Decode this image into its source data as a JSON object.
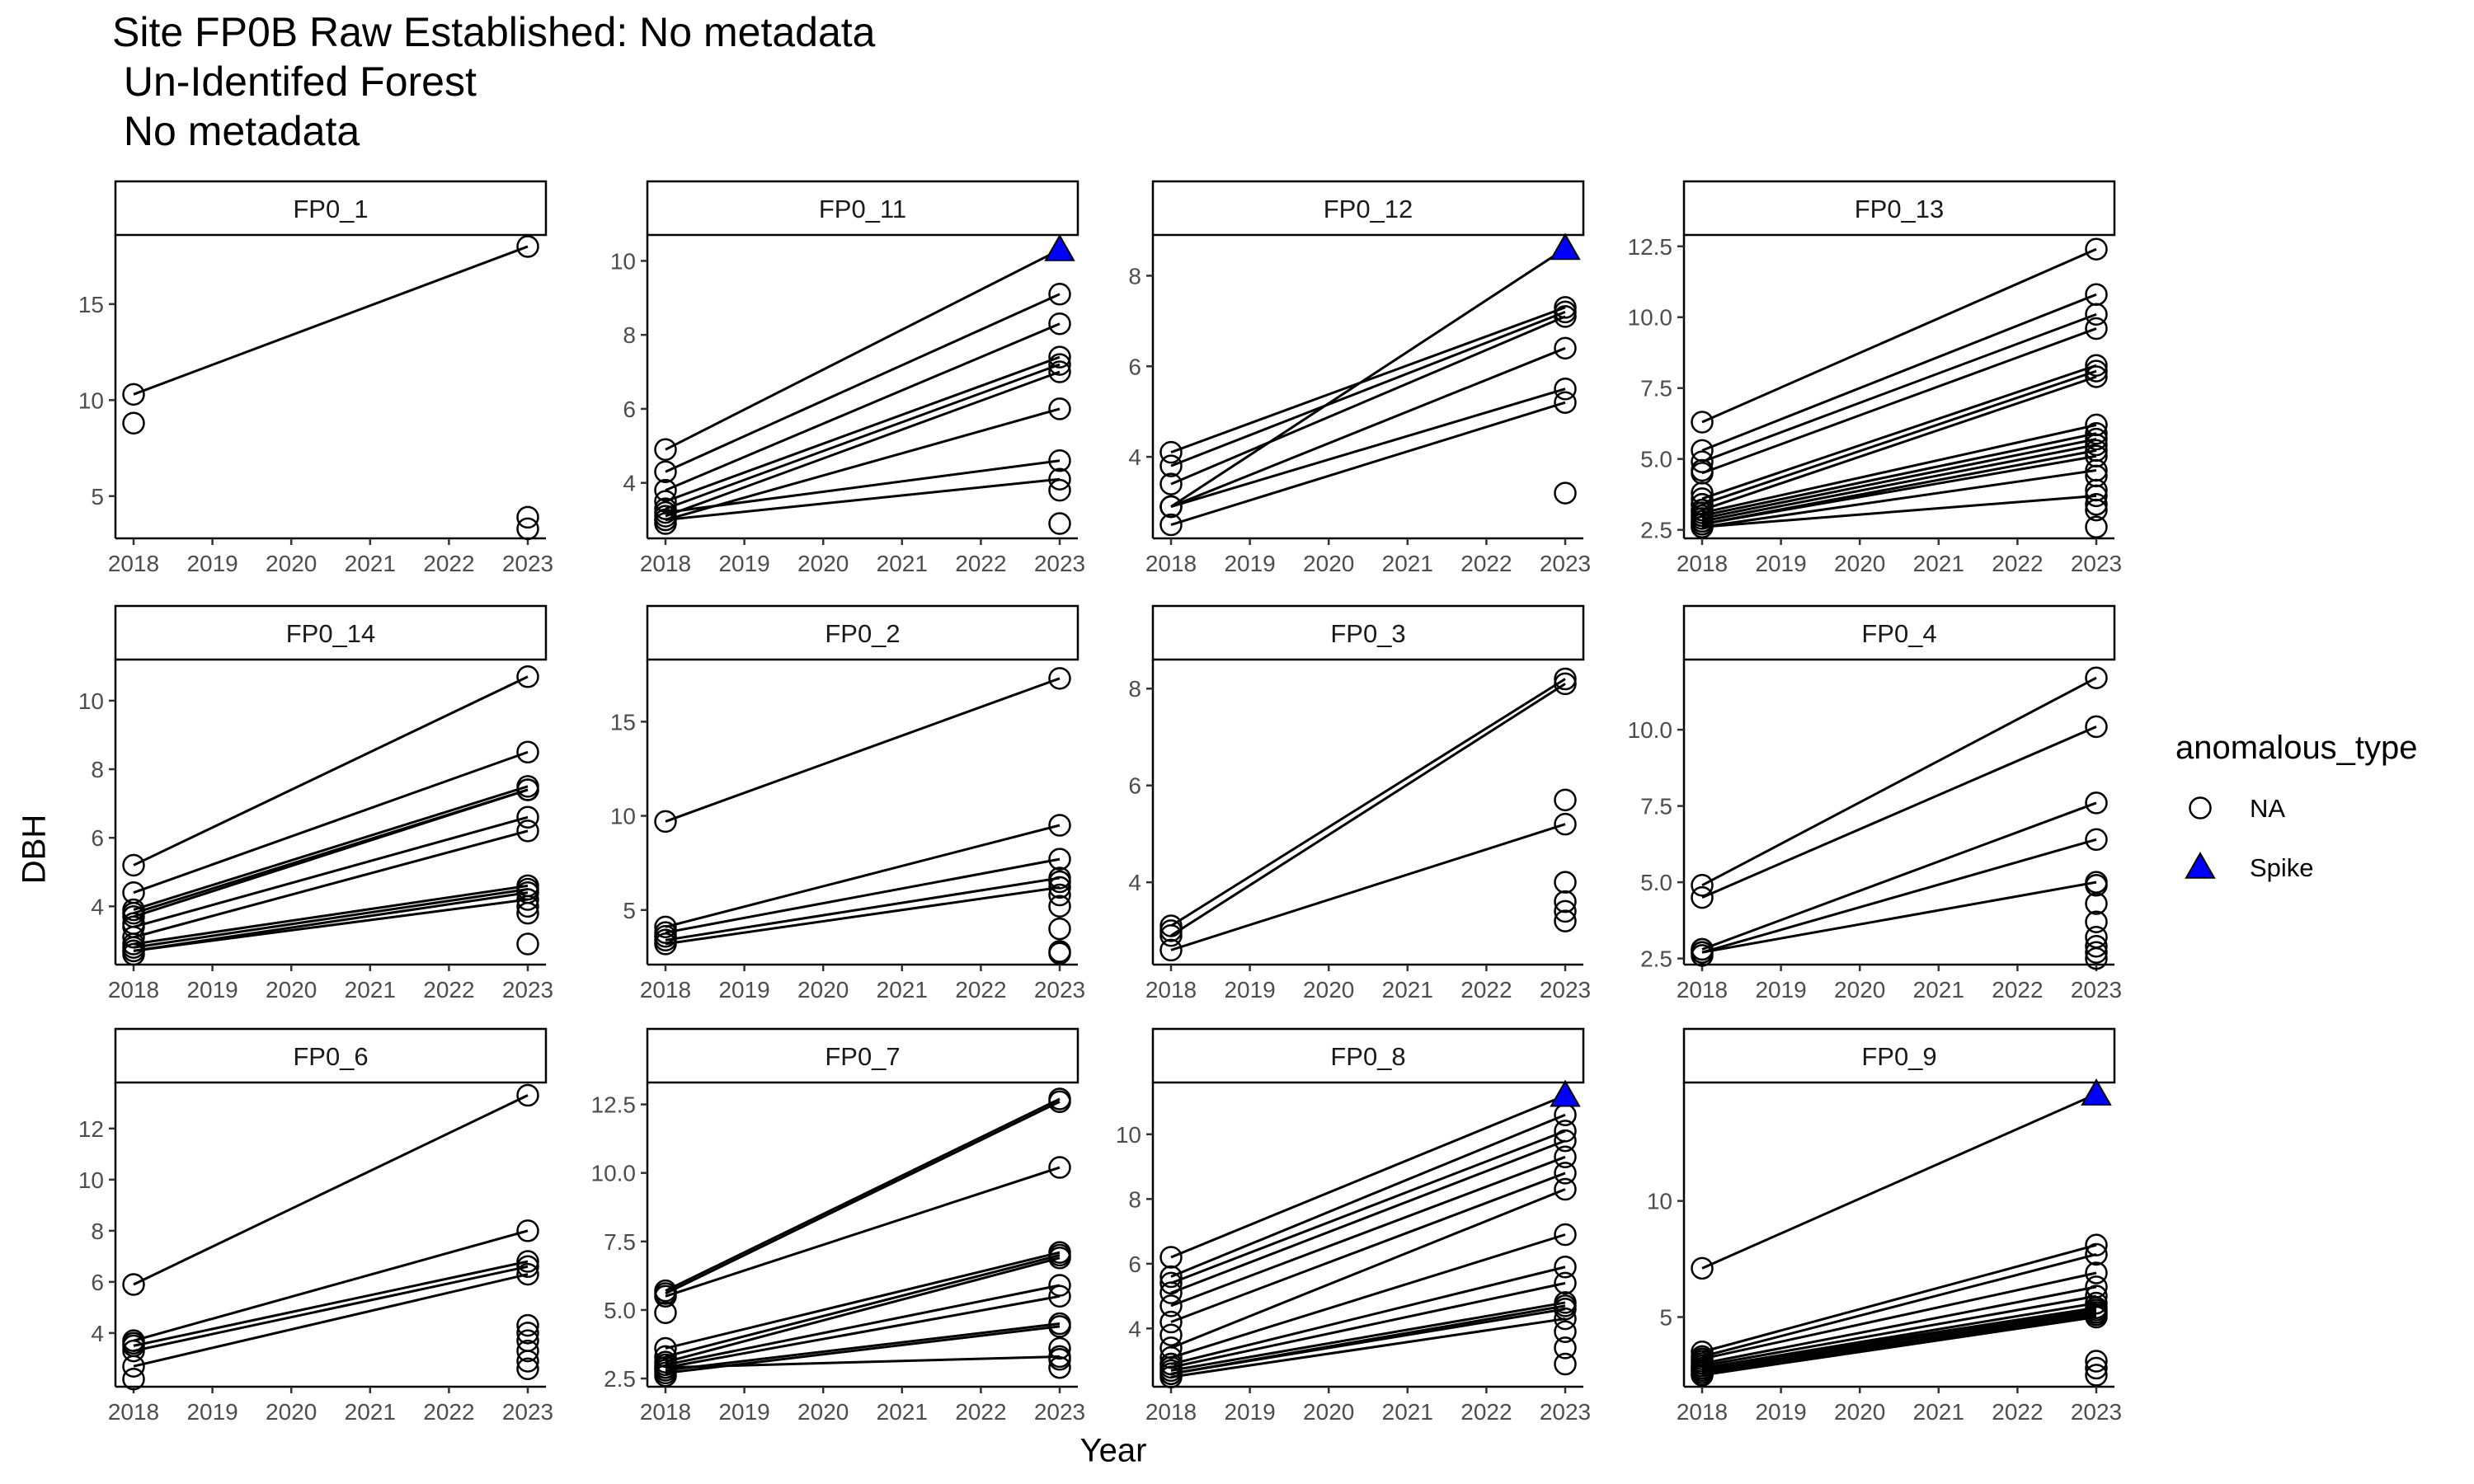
{
  "title_lines": [
    "Site FP0B Raw Established: No metadata",
    " Un-Identifed Forest",
    " No metadata"
  ],
  "chart_data": {
    "type": "line",
    "xlabel": "Year",
    "ylabel": "DBH",
    "x_ticks": [
      "2018",
      "2019",
      "2020",
      "2021",
      "2022",
      "2023"
    ],
    "xlim": [
      2018,
      2023
    ],
    "grid": false,
    "legend": {
      "title": "anomalous_type",
      "placement": "right",
      "entries": [
        {
          "label": "NA",
          "shape": "open-circle"
        },
        {
          "label": "Spike",
          "shape": "filled-triangle",
          "color": "#0000FF"
        }
      ]
    },
    "panels": [
      {
        "name": "FP0_1",
        "ylim": [
          2.8,
          18.6
        ],
        "yticks": [
          5,
          10,
          15
        ],
        "ytick_labels": [
          "5",
          "10",
          "15"
        ],
        "pairs": [
          [
            10.3,
            18.0
          ]
        ],
        "points_2018": [
          8.8
        ],
        "points_2023": [
          3.3,
          3.9
        ],
        "spikes_2023": []
      },
      {
        "name": "FP0_11",
        "ylim": [
          2.5,
          10.7
        ],
        "yticks": [
          4,
          6,
          8,
          10
        ],
        "ytick_labels": [
          "4",
          "6",
          "8",
          "10"
        ],
        "pairs": [
          [
            4.9,
            10.3
          ],
          [
            4.3,
            9.1
          ],
          [
            3.8,
            8.3
          ],
          [
            3.5,
            7.4
          ],
          [
            3.3,
            7.2
          ],
          [
            3.1,
            7.0
          ],
          [
            3.0,
            6.0
          ],
          [
            3.2,
            4.6
          ],
          [
            3.0,
            4.1
          ]
        ],
        "points_2018": [
          2.9
        ],
        "points_2023": [
          3.8,
          2.9
        ],
        "spikes_2023": [
          10.3
        ]
      },
      {
        "name": "FP0_12",
        "ylim": [
          2.2,
          8.9
        ],
        "yticks": [
          4,
          6,
          8
        ],
        "ytick_labels": [
          "4",
          "6",
          "8"
        ],
        "pairs": [
          [
            2.9,
            8.6
          ],
          [
            4.1,
            7.3
          ],
          [
            3.8,
            7.2
          ],
          [
            3.4,
            7.1
          ],
          [
            2.9,
            6.4
          ],
          [
            2.9,
            5.5
          ],
          [
            2.5,
            5.2
          ]
        ],
        "points_2018": [],
        "points_2023": [
          3.2
        ],
        "spikes_2023": [
          8.6
        ]
      },
      {
        "name": "FP0_13",
        "ylim": [
          2.2,
          12.9
        ],
        "yticks": [
          2.5,
          5.0,
          7.5,
          10.0,
          12.5
        ],
        "ytick_labels": [
          "2.5",
          "5.0",
          "7.5",
          "10.0",
          "12.5"
        ],
        "pairs": [
          [
            6.3,
            12.4
          ],
          [
            5.3,
            10.8
          ],
          [
            4.9,
            10.1
          ],
          [
            4.5,
            9.6
          ],
          [
            3.6,
            8.3
          ],
          [
            3.4,
            8.1
          ],
          [
            3.2,
            7.9
          ],
          [
            3.1,
            6.2
          ],
          [
            3.0,
            5.9
          ],
          [
            2.9,
            5.7
          ],
          [
            2.8,
            5.5
          ],
          [
            2.7,
            5.3
          ],
          [
            2.7,
            5.1
          ],
          [
            2.6,
            4.6
          ],
          [
            2.6,
            3.7
          ]
        ],
        "points_2018": [
          4.6,
          3.8,
          3.4,
          3.2,
          3.0,
          2.8
        ],
        "points_2023": [
          4.4,
          3.9,
          3.4,
          3.2,
          2.6
        ],
        "spikes_2023": []
      },
      {
        "name": "FP0_14",
        "ylim": [
          2.3,
          11.2
        ],
        "yticks": [
          4,
          6,
          8,
          10
        ],
        "ytick_labels": [
          "4",
          "6",
          "8",
          "10"
        ],
        "pairs": [
          [
            5.2,
            10.7
          ],
          [
            4.4,
            8.5
          ],
          [
            3.9,
            7.5
          ],
          [
            3.8,
            7.4
          ],
          [
            3.7,
            7.4
          ],
          [
            3.4,
            6.6
          ],
          [
            3.1,
            6.2
          ],
          [
            2.9,
            4.6
          ],
          [
            2.8,
            4.5
          ],
          [
            2.7,
            4.4
          ],
          [
            2.7,
            4.2
          ]
        ],
        "points_2018": [
          3.5,
          2.6
        ],
        "points_2023": [
          4.0,
          3.8,
          2.9
        ],
        "spikes_2023": []
      },
      {
        "name": "FP0_2",
        "ylim": [
          2.1,
          18.3
        ],
        "yticks": [
          5,
          10,
          15
        ],
        "ytick_labels": [
          "5",
          "10",
          "15"
        ],
        "pairs": [
          [
            9.7,
            17.3
          ],
          [
            4.1,
            9.5
          ],
          [
            3.8,
            7.7
          ],
          [
            3.4,
            6.7
          ],
          [
            3.2,
            6.2
          ]
        ],
        "points_2018": [
          3.6
        ],
        "points_2023": [
          6.5,
          5.8,
          5.2,
          4.0,
          2.8,
          2.7
        ],
        "spikes_2023": []
      },
      {
        "name": "FP0_3",
        "ylim": [
          2.3,
          8.6
        ],
        "yticks": [
          4,
          6,
          8
        ],
        "ytick_labels": [
          "4",
          "6",
          "8"
        ],
        "pairs": [
          [
            3.1,
            8.2
          ],
          [
            2.9,
            8.1
          ],
          [
            2.6,
            5.2
          ]
        ],
        "points_2018": [
          3.0
        ],
        "points_2023": [
          5.7,
          4.0,
          3.6,
          3.4,
          3.2
        ],
        "spikes_2023": []
      },
      {
        "name": "FP0_4",
        "ylim": [
          2.3,
          12.3
        ],
        "yticks": [
          2.5,
          5.0,
          7.5,
          10.0
        ],
        "ytick_labels": [
          "2.5",
          "5.0",
          "7.5",
          "10.0"
        ],
        "pairs": [
          [
            4.9,
            11.7
          ],
          [
            4.5,
            10.1
          ],
          [
            2.8,
            7.6
          ],
          [
            2.7,
            6.4
          ],
          [
            2.7,
            5.0
          ]
        ],
        "points_2018": [
          2.8,
          2.6
        ],
        "points_2023": [
          4.9,
          4.3,
          3.7,
          3.2,
          2.9,
          2.7,
          2.5
        ],
        "spikes_2023": []
      },
      {
        "name": "FP0_6",
        "ylim": [
          1.9,
          13.8
        ],
        "yticks": [
          4,
          6,
          8,
          10,
          12
        ],
        "ytick_labels": [
          "4",
          "6",
          "8",
          "10",
          "12"
        ],
        "pairs": [
          [
            5.9,
            13.3
          ],
          [
            3.7,
            8.0
          ],
          [
            3.5,
            6.8
          ],
          [
            3.3,
            6.6
          ],
          [
            2.7,
            6.3
          ]
        ],
        "points_2018": [
          3.6,
          2.2
        ],
        "points_2023": [
          4.3,
          4.0,
          3.7,
          3.3,
          2.9,
          2.6
        ],
        "spikes_2023": []
      },
      {
        "name": "FP0_7",
        "ylim": [
          2.2,
          13.3
        ],
        "yticks": [
          2.5,
          5.0,
          7.5,
          10.0,
          12.5
        ],
        "ytick_labels": [
          "2.5",
          "5.0",
          "7.5",
          "10.0",
          "12.5"
        ],
        "pairs": [
          [
            5.7,
            12.7
          ],
          [
            5.6,
            12.6
          ],
          [
            5.5,
            10.2
          ],
          [
            3.6,
            7.1
          ],
          [
            3.3,
            7.0
          ],
          [
            3.1,
            6.9
          ],
          [
            3.0,
            5.9
          ],
          [
            2.9,
            5.5
          ],
          [
            2.8,
            4.5
          ],
          [
            2.7,
            4.4
          ],
          [
            2.9,
            3.3
          ]
        ],
        "points_2018": [
          4.9,
          2.6
        ],
        "points_2023": [
          3.6,
          3.2,
          2.9
        ],
        "spikes_2023": []
      },
      {
        "name": "FP0_8",
        "ylim": [
          2.2,
          11.6
        ],
        "yticks": [
          4,
          6,
          8,
          10
        ],
        "ytick_labels": [
          "4",
          "6",
          "8",
          "10"
        ],
        "pairs": [
          [
            6.2,
            11.2
          ],
          [
            5.6,
            10.6
          ],
          [
            5.4,
            10.1
          ],
          [
            5.1,
            9.8
          ],
          [
            4.7,
            9.3
          ],
          [
            4.2,
            8.8
          ],
          [
            3.4,
            8.3
          ],
          [
            3.1,
            6.9
          ],
          [
            2.9,
            5.9
          ],
          [
            2.8,
            5.4
          ],
          [
            2.7,
            4.8
          ],
          [
            2.6,
            4.7
          ],
          [
            2.6,
            4.6
          ],
          [
            2.5,
            4.3
          ]
        ],
        "points_2018": [
          3.8,
          2.9
        ],
        "points_2023": [
          3.9,
          3.4,
          2.9
        ],
        "spikes_2023": [
          11.2
        ]
      },
      {
        "name": "FP0_9",
        "ylim": [
          2.0,
          15.1
        ],
        "yticks": [
          5,
          10
        ],
        "ytick_labels": [
          "5",
          "10"
        ],
        "pairs": [
          [
            7.1,
            14.6
          ],
          [
            3.5,
            8.1
          ],
          [
            3.3,
            7.7
          ],
          [
            3.2,
            6.9
          ],
          [
            3.0,
            6.3
          ],
          [
            2.9,
            5.9
          ],
          [
            2.8,
            5.6
          ],
          [
            2.8,
            5.4
          ],
          [
            2.7,
            5.3
          ],
          [
            2.6,
            5.2
          ],
          [
            2.5,
            5.1
          ],
          [
            2.5,
            5.0
          ]
        ],
        "points_2018": [
          3.1,
          2.7
        ],
        "points_2023": [
          3.1,
          2.8,
          2.5
        ],
        "spikes_2023": [
          14.6
        ]
      }
    ]
  }
}
